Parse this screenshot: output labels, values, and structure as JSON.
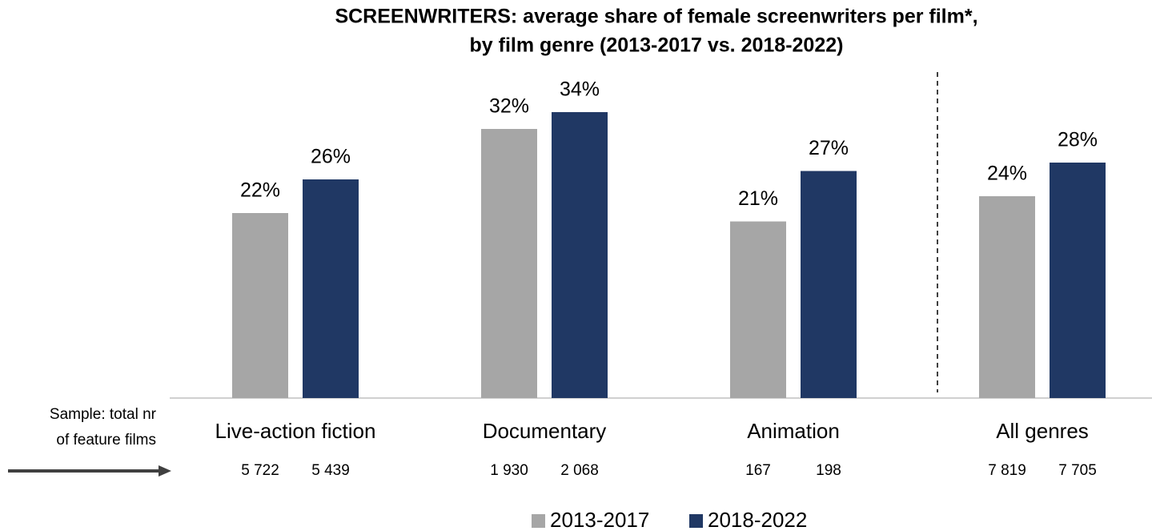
{
  "chart_data": {
    "type": "bar",
    "title": [
      "SCREENWRITERS: average share of female screenwriters per film*,",
      "by film genre (2013-2017 vs. 2018-2022)"
    ],
    "categories": [
      "Live-action fiction",
      "Documentary",
      "Animation",
      "All genres"
    ],
    "series": [
      {
        "name": "2013-2017",
        "color": "#a6a6a6",
        "values": [
          22,
          32,
          21,
          24
        ],
        "value_labels": [
          "22%",
          "32%",
          "21%",
          "24%"
        ],
        "sample": [
          {
            "value": 5722,
            "label": "5 722"
          },
          {
            "value": 1930,
            "label": "1 930"
          },
          {
            "value": 167,
            "label": "167"
          },
          {
            "value": 7819,
            "label": "7 819"
          }
        ]
      },
      {
        "name": "2018-2022",
        "color": "#203864",
        "values": [
          26,
          34,
          27,
          28
        ],
        "value_labels": [
          "26%",
          "34%",
          "27%",
          "28%"
        ],
        "sample": [
          {
            "value": 5439,
            "label": "5 439"
          },
          {
            "value": 2068,
            "label": "2 068"
          },
          {
            "value": 198,
            "label": "198"
          },
          {
            "value": 7705,
            "label": "7 705"
          }
        ]
      }
    ],
    "sample_label": [
      "Sample: total nr",
      "of feature films"
    ],
    "ylim": [
      0,
      40
    ],
    "legend": "bottom"
  }
}
